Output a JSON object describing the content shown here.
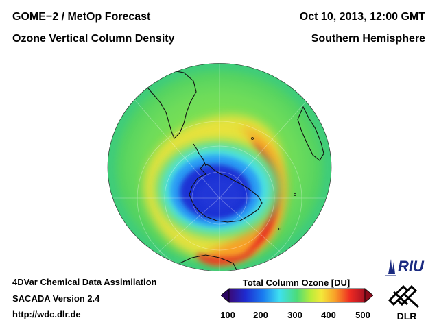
{
  "header": {
    "title": "GOME−2 / MetOp Forecast",
    "subtitle": "Ozone Vertical Column Density",
    "date": "Oct 10, 2013, 12:00 GMT",
    "region": "Southern Hemisphere"
  },
  "footer": {
    "line1": "4DVar Chemical Data Assimilation",
    "line2": "SACADA Version 2.4",
    "url": "http://wdc.dlr.de"
  },
  "legend": {
    "title": "Total Column Ozone [DU]",
    "ticks": [
      "100",
      "200",
      "300",
      "400",
      "500"
    ],
    "min": 100,
    "max": 500,
    "colors": [
      "#3a0a78",
      "#1e2bd0",
      "#1a7cf0",
      "#3ee0f0",
      "#4cdc78",
      "#b8ec3a",
      "#f4e83a",
      "#f8a028",
      "#ee2a22",
      "#a81224"
    ]
  },
  "logos": {
    "riu": "RIU",
    "dlr": "DLR"
  },
  "map": {
    "projection": "orthographic south polar",
    "ozone_hole_min_du": 150,
    "collar_max_du": 450
  }
}
